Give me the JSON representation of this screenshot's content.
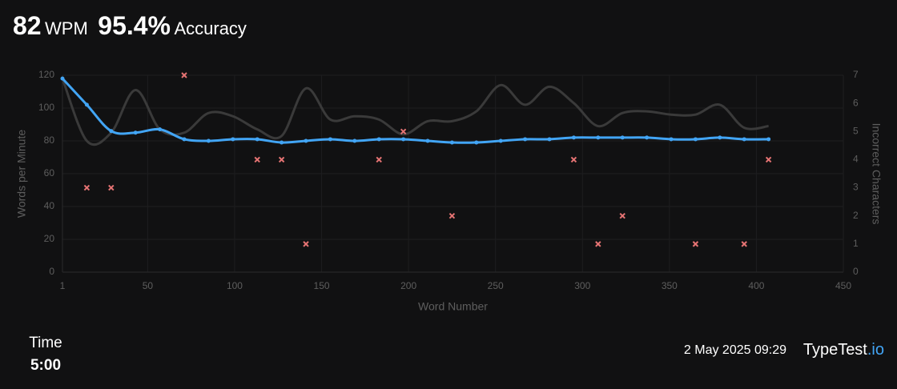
{
  "header": {
    "wpm": "82",
    "wpm_label": "WPM",
    "accuracy": "95.4%",
    "accuracy_label": "Accuracy"
  },
  "footer": {
    "time_label": "Time",
    "time": "5:00",
    "date": "2 May 2025 09:29",
    "brand": "TypeTest",
    "brand_suffix": ".io"
  },
  "chart_data": {
    "type": "line",
    "x_label": "Word Number",
    "y_label": "Words per Minute",
    "y2_label": "Incorrect Characters",
    "x": [
      1,
      15,
      29,
      43,
      57,
      71,
      85,
      99,
      113,
      127,
      141,
      155,
      169,
      183,
      197,
      211,
      225,
      239,
      253,
      267,
      281,
      295,
      309,
      323,
      337,
      351,
      365,
      379,
      393,
      407
    ],
    "series": [
      {
        "type": "line",
        "color": "#3a3a3a",
        "values": [
          118,
          80,
          85,
          111,
          87,
          85,
          97,
          95,
          87,
          83,
          112,
          93,
          95,
          93,
          84,
          92,
          92,
          98,
          114,
          102,
          113,
          103,
          89,
          97,
          98,
          96,
          96,
          102,
          88,
          89
        ]
      },
      {
        "type": "line",
        "color": "#42a5f5",
        "values": [
          118,
          102,
          86,
          85,
          87,
          81,
          80,
          81,
          81,
          79,
          80,
          81,
          80,
          81,
          81,
          80,
          79,
          79,
          80,
          81,
          81,
          82,
          82,
          82,
          82,
          81,
          81,
          82,
          81,
          81
        ]
      },
      {
        "type": "scatter",
        "axis": "y2",
        "color": "#e57373",
        "values": [
          null,
          3,
          3,
          null,
          null,
          7,
          null,
          null,
          4,
          4,
          1,
          null,
          null,
          4,
          5,
          null,
          2,
          null,
          null,
          null,
          null,
          4,
          1,
          2,
          null,
          null,
          1,
          null,
          1,
          4
        ]
      }
    ],
    "xlim": [
      1,
      450
    ],
    "xticks": [
      1,
      50,
      100,
      150,
      200,
      250,
      300,
      350,
      400,
      450
    ],
    "ylim": [
      0,
      120
    ],
    "yticks": [
      0,
      20,
      40,
      60,
      80,
      100,
      120
    ],
    "y2lim": [
      0,
      7
    ],
    "y2ticks": [
      0,
      1,
      2,
      3,
      4,
      5,
      6,
      7
    ],
    "grid": true
  }
}
